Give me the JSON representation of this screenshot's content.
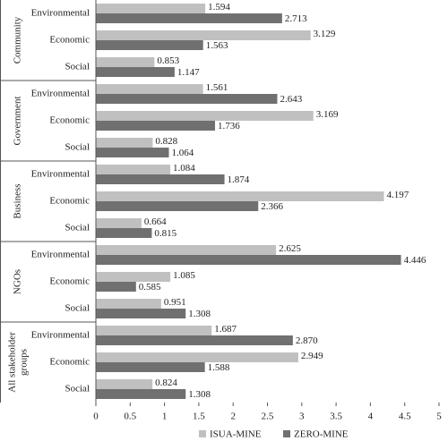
{
  "chart_data": {
    "type": "hbar_grouped",
    "groups": [
      "Community",
      "Government",
      "Business",
      "NGOs",
      "All stakeholder groups"
    ],
    "categories": [
      "Environmental",
      "Economic",
      "Social",
      "Environmental",
      "Economic",
      "Social",
      "Environmental",
      "Economic",
      "Social",
      "Environmental",
      "Economic",
      "Social",
      "Environmental",
      "Economic",
      "Social"
    ],
    "series": [
      {
        "name": "ISUA-MINE",
        "color": "#c0c0c0",
        "values": [
          1.594,
          3.129,
          0.853,
          1.561,
          3.169,
          0.828,
          1.084,
          4.197,
          0.664,
          2.625,
          1.085,
          0.951,
          1.687,
          2.949,
          0.824
        ],
        "value_labels": [
          "1.594",
          "3.129",
          "0.853",
          "1.561",
          "3.169",
          "0.828",
          "1.084",
          "4.197",
          "0.664",
          "2.625",
          "1.085",
          "0.951",
          "1.687",
          "2.949",
          "0.824"
        ]
      },
      {
        "name": "ZERO-MINE",
        "color": "#707070",
        "values": [
          2.713,
          1.563,
          1.147,
          2.643,
          1.736,
          1.064,
          1.874,
          2.366,
          0.815,
          4.446,
          0.585,
          1.308,
          2.87,
          1.588,
          1.308
        ],
        "value_labels": [
          "2.713",
          "1.563",
          "1.147",
          "2.643",
          "1.736",
          "1.064",
          "1.874",
          "2.366",
          "0.815",
          "4.446",
          "0.585",
          "1.308",
          "2.870",
          "1.588",
          "1.308"
        ]
      }
    ],
    "xlim": [
      0,
      5
    ],
    "xticks": [
      0,
      0.5,
      1,
      1.5,
      2,
      2.5,
      3,
      3.5,
      4,
      4.5,
      5
    ],
    "legend": "bottom"
  }
}
